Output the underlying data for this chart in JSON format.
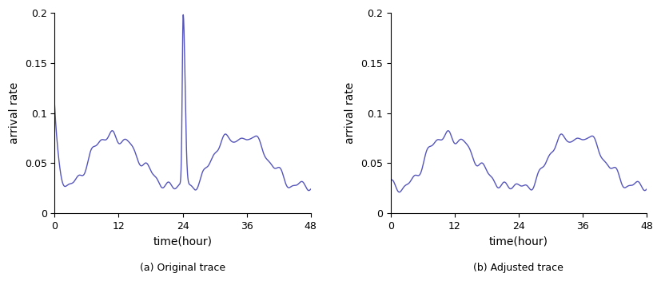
{
  "line_color": "#5555bb",
  "line_width": 1.0,
  "xlim": [
    0,
    48
  ],
  "ylim": [
    0,
    0.2
  ],
  "xticks": [
    0,
    12,
    24,
    36,
    48
  ],
  "yticks": [
    0,
    0.05,
    0.1,
    0.15,
    0.2
  ],
  "xlabel": "time(hour)",
  "ylabel": "arrival rate",
  "title_a": "(a) Original trace",
  "title_b": "(b) Adjusted trace",
  "figsize": [
    8.28,
    3.62
  ],
  "dpi": 100,
  "adj_x": [
    0,
    1,
    2,
    3,
    4,
    5,
    6,
    7,
    8,
    9,
    10,
    11,
    12,
    13,
    14,
    15,
    16,
    17,
    18,
    19,
    20,
    21,
    22,
    23,
    24,
    25,
    26,
    27,
    28,
    29,
    30,
    31,
    32,
    33,
    34,
    35,
    36,
    37,
    38,
    39,
    40,
    41,
    42,
    43,
    44,
    45,
    46,
    47,
    48
  ],
  "adj_y": [
    0.027,
    0.027,
    0.027,
    0.028,
    0.03,
    0.038,
    0.05,
    0.063,
    0.069,
    0.073,
    0.076,
    0.079,
    0.075,
    0.072,
    0.068,
    0.06,
    0.055,
    0.048,
    0.04,
    0.035,
    0.03,
    0.028,
    0.027,
    0.027,
    0.027,
    0.027,
    0.028,
    0.03,
    0.038,
    0.05,
    0.063,
    0.069,
    0.073,
    0.075,
    0.072,
    0.076,
    0.071,
    0.078,
    0.073,
    0.063,
    0.055,
    0.048,
    0.04,
    0.035,
    0.03,
    0.028,
    0.027,
    0.027,
    0.027
  ]
}
